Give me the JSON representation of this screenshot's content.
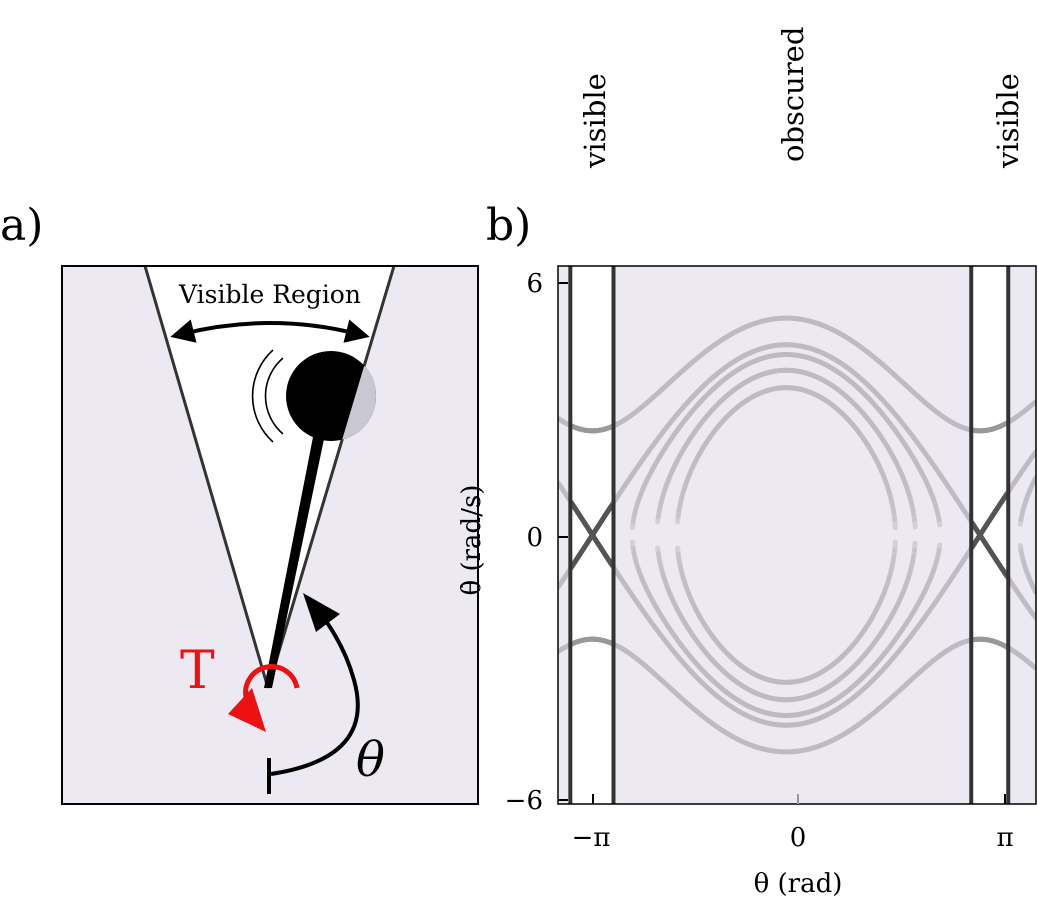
{
  "panel_a": {
    "label": "a)",
    "visible_region_label": "Visible Region",
    "torque_label": "T",
    "angle_label": "θ",
    "colors": {
      "background": "#ece9f3",
      "torque": "#ee1111",
      "visible": "#ffffff"
    }
  },
  "panel_b": {
    "label": "b)",
    "region_labels": [
      "visible",
      "obscured",
      "visible"
    ],
    "xlabel": "θ (rad)",
    "ylabel": "θ̇ (rad/s)",
    "ytick_labels": [
      "6",
      "0",
      "−6"
    ],
    "xtick_labels": [
      "−π",
      "0",
      "π"
    ]
  },
  "chart_data": {
    "type": "line",
    "xlabel": "θ (rad)",
    "ylabel": "θ̇ (rad/s)",
    "xlim": [
      -3.7,
      4.05
    ],
    "ylim": [
      -6,
      6
    ],
    "visible_band_left": [
      -3.5,
      -2.8
    ],
    "visible_band_right": [
      3.0,
      3.6
    ],
    "curve_energies": [
      1.2,
      1.5,
      1.8,
      2.0,
      2.6
    ],
    "energy_scale": 9
  }
}
